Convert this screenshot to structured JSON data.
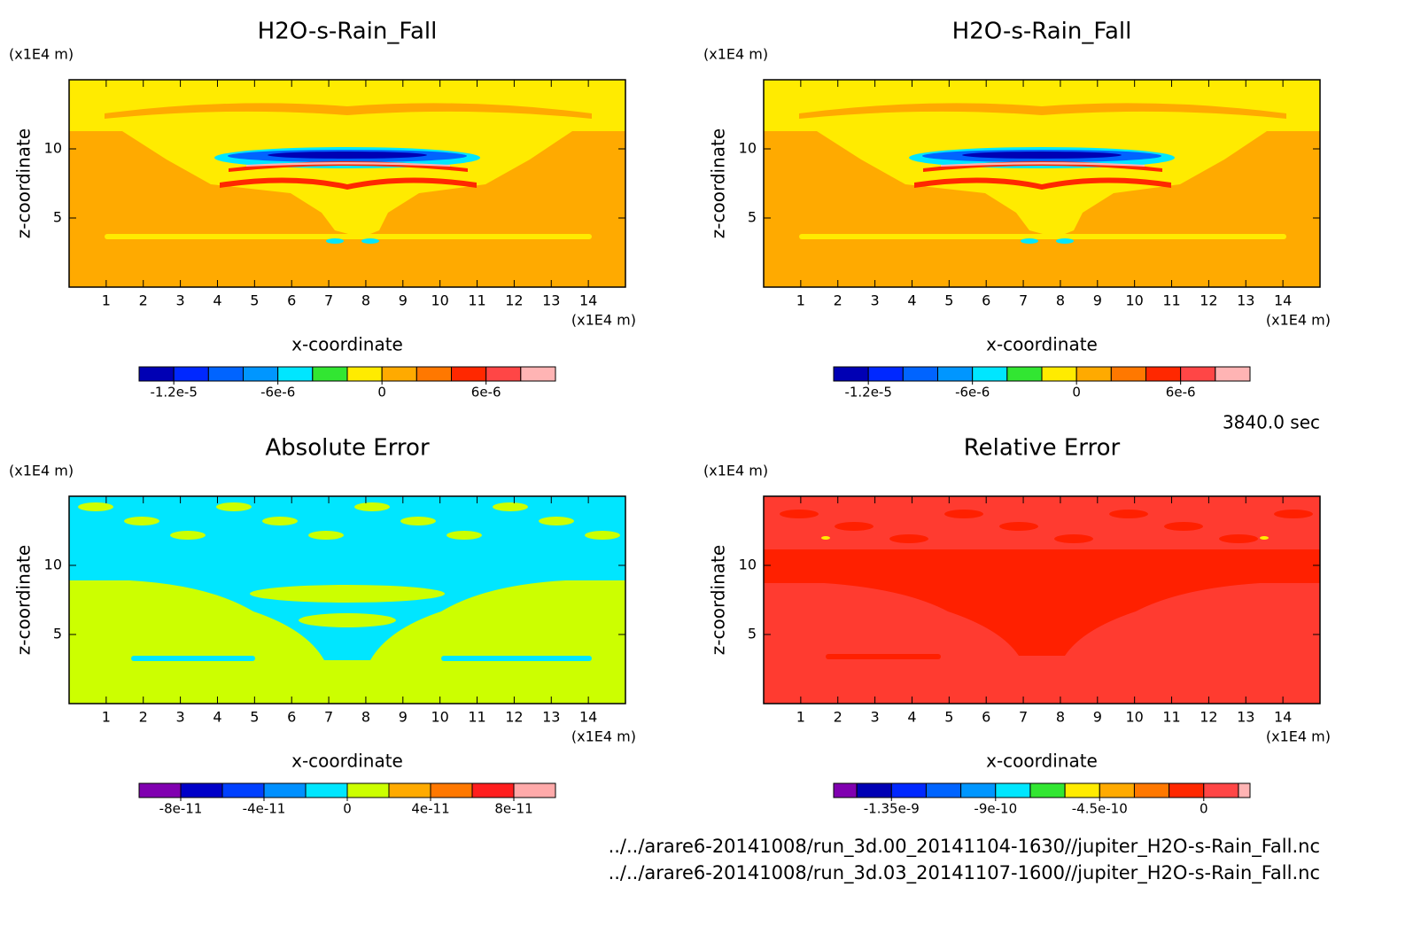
{
  "chart_data": [
    {
      "type": "contour",
      "title": "H2O-s-Rain_Fall",
      "x_label": "x-coordinate",
      "y_label": "z-coordinate",
      "x_unit": "(x1E4 m)",
      "y_unit": "(x1E4 m)",
      "xlim": [
        0,
        15
      ],
      "ylim": [
        0,
        15
      ],
      "xticks": [
        1,
        2,
        3,
        4,
        5,
        6,
        7,
        8,
        9,
        10,
        11,
        12,
        13,
        14
      ],
      "yticks": [
        5,
        10
      ],
      "field": "rain",
      "colorbar": {
        "colors": [
          "#0000b4",
          "#0028ff",
          "#0064ff",
          "#0096ff",
          "#00e6ff",
          "#32e632",
          "#ffeb00",
          "#ffaa00",
          "#ff7800",
          "#ff2800",
          "#ff4646",
          "#ffb4b4"
        ],
        "levels": [
          -1.4e-05,
          -1.2e-05,
          -1e-05,
          -8e-06,
          -6e-06,
          -4e-06,
          -2e-06,
          0,
          2e-06,
          4e-06,
          6e-06,
          8e-06,
          1e-05
        ],
        "ticks": [
          {
            "value": -1.2e-05,
            "label": "-1.2e-5"
          },
          {
            "value": -6e-06,
            "label": "-6e-6"
          },
          0,
          {
            "value": 6e-06,
            "label": "6e-6"
          }
        ]
      }
    },
    {
      "type": "contour",
      "title": "H2O-s-Rain_Fall",
      "x_label": "x-coordinate",
      "y_label": "z-coordinate",
      "x_unit": "(x1E4 m)",
      "y_unit": "(x1E4 m)",
      "xlim": [
        0,
        15
      ],
      "ylim": [
        0,
        15
      ],
      "xticks": [
        1,
        2,
        3,
        4,
        5,
        6,
        7,
        8,
        9,
        10,
        11,
        12,
        13,
        14
      ],
      "yticks": [
        5,
        10
      ],
      "field": "rain",
      "colorbar": {
        "colors": [
          "#0000b4",
          "#0028ff",
          "#0064ff",
          "#0096ff",
          "#00e6ff",
          "#32e632",
          "#ffeb00",
          "#ffaa00",
          "#ff7800",
          "#ff2800",
          "#ff4646",
          "#ffb4b4"
        ],
        "levels": [
          -1.4e-05,
          -1.2e-05,
          -1e-05,
          -8e-06,
          -6e-06,
          -4e-06,
          -2e-06,
          0,
          2e-06,
          4e-06,
          6e-06,
          8e-06,
          1e-05
        ],
        "ticks": [
          {
            "value": -1.2e-05,
            "label": "-1.2e-5"
          },
          {
            "value": -6e-06,
            "label": "-6e-6"
          },
          0,
          {
            "value": 6e-06,
            "label": "6e-6"
          }
        ]
      }
    },
    {
      "type": "contour",
      "title": "Absolute Error",
      "x_label": "x-coordinate",
      "y_label": "z-coordinate",
      "x_unit": "(x1E4 m)",
      "y_unit": "(x1E4 m)",
      "xlim": [
        0,
        15
      ],
      "ylim": [
        0,
        15
      ],
      "xticks": [
        1,
        2,
        3,
        4,
        5,
        6,
        7,
        8,
        9,
        10,
        11,
        12,
        13,
        14
      ],
      "yticks": [
        5,
        10
      ],
      "field": "abs",
      "colorbar": {
        "colors": [
          "#8000b0",
          "#0000c8",
          "#0040ff",
          "#0090ff",
          "#00e6ff",
          "#ccff00",
          "#ffaa00",
          "#ff7800",
          "#ff1e1e",
          "#ffaaaa"
        ],
        "levels": [
          -1e-10,
          -8e-11,
          -6e-11,
          -4e-11,
          -2e-11,
          0,
          2e-11,
          4e-11,
          6e-11,
          8e-11,
          1e-10
        ],
        "ticks": [
          {
            "value": -8e-11,
            "label": "-8e-11"
          },
          {
            "value": -4e-11,
            "label": "-4e-11"
          },
          0,
          {
            "value": 4e-11,
            "label": "4e-11"
          },
          {
            "value": 8e-11,
            "label": "8e-11"
          }
        ]
      }
    },
    {
      "type": "contour",
      "title": "Relative Error",
      "x_label": "x-coordinate",
      "y_label": "z-coordinate",
      "x_unit": "(x1E4 m)",
      "y_unit": "(x1E4 m)",
      "xlim": [
        0,
        15
      ],
      "ylim": [
        0,
        15
      ],
      "xticks": [
        1,
        2,
        3,
        4,
        5,
        6,
        7,
        8,
        9,
        10,
        11,
        12,
        13,
        14
      ],
      "yticks": [
        5,
        10
      ],
      "field": "rel",
      "colorbar": {
        "colors": [
          "#8000b0",
          "#0000b4",
          "#0028ff",
          "#0064ff",
          "#0096ff",
          "#00e6ff",
          "#32e632",
          "#ffeb00",
          "#ffaa00",
          "#ff7800",
          "#ff2800",
          "#ff4646",
          "#ffb4b4"
        ],
        "levels": [
          -1.6e-09,
          -1.5e-09,
          -1.35e-09,
          -1.2e-09,
          -1.05e-09,
          -9e-10,
          -7.5e-10,
          -6e-10,
          -4.5e-10,
          -3e-10,
          -1.5e-10,
          0,
          1.5e-10,
          2e-10
        ],
        "ticks": [
          {
            "value": -1.35e-09,
            "label": "-1.35e-9"
          },
          {
            "value": -9e-10,
            "label": "-9e-10"
          },
          {
            "value": -4.5e-10,
            "label": "-4.5e-10"
          },
          0
        ]
      }
    }
  ],
  "annotations": {
    "time": "3840.0 sec",
    "files": [
      "../../arare6-20141008/run_3d.00_20141104-1630//jupiter_H2O-s-Rain_Fall.nc",
      "../../arare6-20141008/run_3d.03_20141107-1600//jupiter_H2O-s-Rain_Fall.nc"
    ]
  }
}
